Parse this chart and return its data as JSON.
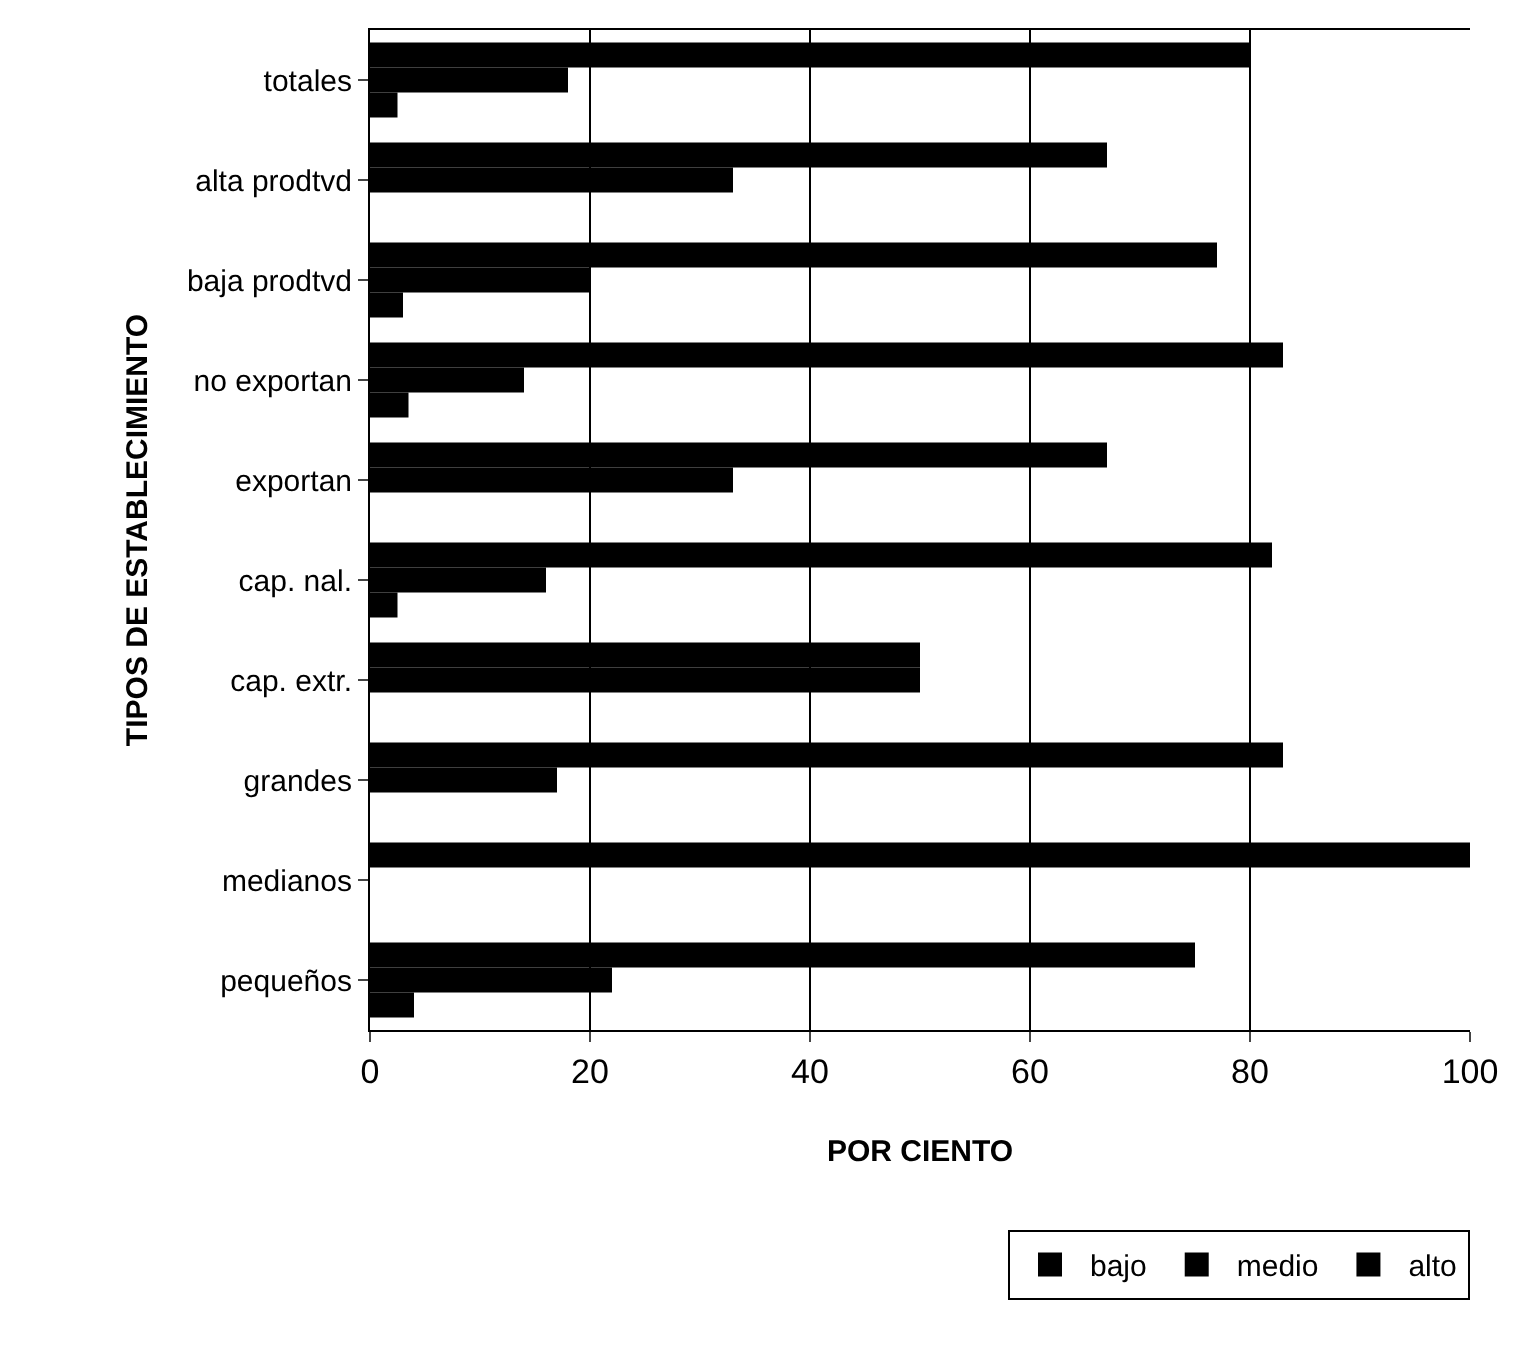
{
  "chart_data": {
    "type": "bar",
    "orientation": "horizontal",
    "xlabel": "POR CIENTO",
    "ylabel": "TIPOS DE ESTABLECIMIENTO",
    "categories": [
      "totales",
      "alta prodtvd",
      "baja prodtvd",
      "no exportan",
      "exportan",
      "cap. nal.",
      "cap. extr.",
      "grandes",
      "medianos",
      "pequeños"
    ],
    "series": [
      {
        "name": "bajo",
        "color": "#000000",
        "values": [
          80,
          67,
          77,
          83,
          67,
          82,
          50,
          83,
          100,
          75
        ]
      },
      {
        "name": "medio",
        "color": "#000000",
        "values": [
          18,
          33,
          20,
          14,
          33,
          16,
          50,
          17,
          0,
          22
        ]
      },
      {
        "name": "alto",
        "color": "#000000",
        "values": [
          2.5,
          0,
          3,
          3.5,
          0,
          2.5,
          0,
          0,
          0,
          4
        ]
      }
    ],
    "xlim": [
      0,
      100
    ],
    "xticks": [
      0,
      20,
      40,
      60,
      80,
      100
    ],
    "grid": "x",
    "legend": "bottom right"
  }
}
